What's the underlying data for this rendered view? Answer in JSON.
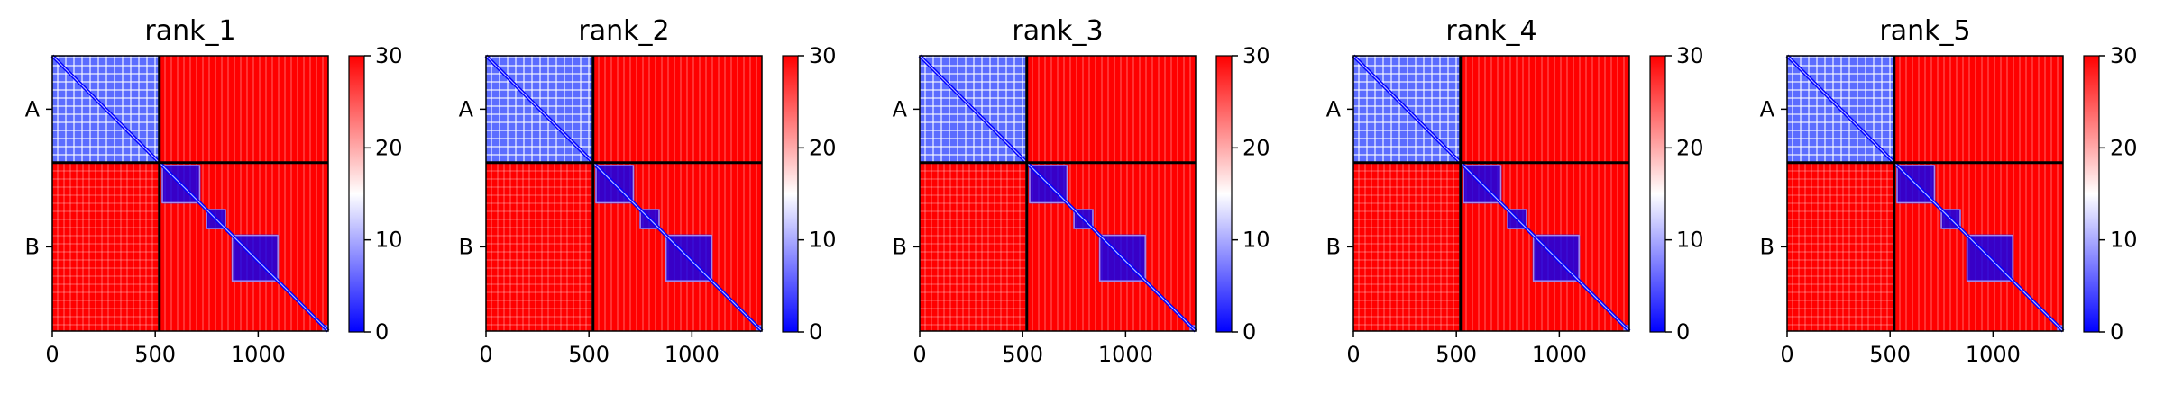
{
  "chart_data": [
    {
      "type": "heatmap",
      "title": "rank_1",
      "xlim": [
        0,
        1340
      ],
      "x_ticks": [
        0,
        500,
        1000
      ],
      "chain_boundaries": [
        0,
        520,
        1340
      ],
      "chain_labels": [
        "A",
        "B"
      ],
      "colorbar": {
        "min": 0,
        "max": 30,
        "ticks": [
          0,
          10,
          20,
          30
        ]
      },
      "colormap": [
        "#0000ff",
        "#ffffff",
        "#ff0000"
      ],
      "domains": [
        [
          0,
          520
        ],
        [
          530,
          720
        ],
        [
          745,
          845
        ],
        [
          870,
          1100
        ],
        [
          1310,
          1340
        ]
      ]
    },
    {
      "type": "heatmap",
      "title": "rank_2",
      "xlim": [
        0,
        1340
      ],
      "x_ticks": [
        0,
        500,
        1000
      ],
      "chain_boundaries": [
        0,
        520,
        1340
      ],
      "chain_labels": [
        "A",
        "B"
      ],
      "colorbar": {
        "min": 0,
        "max": 30,
        "ticks": [
          0,
          10,
          20,
          30
        ]
      },
      "colormap": [
        "#0000ff",
        "#ffffff",
        "#ff0000"
      ],
      "domains": [
        [
          0,
          520
        ],
        [
          530,
          720
        ],
        [
          745,
          845
        ],
        [
          870,
          1100
        ],
        [
          1310,
          1340
        ]
      ]
    },
    {
      "type": "heatmap",
      "title": "rank_3",
      "xlim": [
        0,
        1340
      ],
      "x_ticks": [
        0,
        500,
        1000
      ],
      "chain_boundaries": [
        0,
        520,
        1340
      ],
      "chain_labels": [
        "A",
        "B"
      ],
      "colorbar": {
        "min": 0,
        "max": 30,
        "ticks": [
          0,
          10,
          20,
          30
        ]
      },
      "colormap": [
        "#0000ff",
        "#ffffff",
        "#ff0000"
      ],
      "domains": [
        [
          0,
          520
        ],
        [
          530,
          720
        ],
        [
          745,
          845
        ],
        [
          870,
          1100
        ],
        [
          1310,
          1340
        ]
      ]
    },
    {
      "type": "heatmap",
      "title": "rank_4",
      "xlim": [
        0,
        1340
      ],
      "x_ticks": [
        0,
        500,
        1000
      ],
      "chain_boundaries": [
        0,
        520,
        1340
      ],
      "chain_labels": [
        "A",
        "B"
      ],
      "colorbar": {
        "min": 0,
        "max": 30,
        "ticks": [
          0,
          10,
          20,
          30
        ]
      },
      "colormap": [
        "#0000ff",
        "#ffffff",
        "#ff0000"
      ],
      "domains": [
        [
          0,
          520
        ],
        [
          530,
          720
        ],
        [
          745,
          845
        ],
        [
          870,
          1100
        ],
        [
          1310,
          1340
        ]
      ]
    },
    {
      "type": "heatmap",
      "title": "rank_5",
      "xlim": [
        0,
        1340
      ],
      "x_ticks": [
        0,
        500,
        1000
      ],
      "chain_boundaries": [
        0,
        520,
        1340
      ],
      "chain_labels": [
        "A",
        "B"
      ],
      "colorbar": {
        "min": 0,
        "max": 30,
        "ticks": [
          0,
          10,
          20,
          30
        ]
      },
      "colormap": [
        "#0000ff",
        "#ffffff",
        "#ff0000"
      ],
      "domains": [
        [
          0,
          520
        ],
        [
          530,
          720
        ],
        [
          745,
          845
        ],
        [
          870,
          1100
        ],
        [
          1310,
          1340
        ]
      ]
    }
  ]
}
